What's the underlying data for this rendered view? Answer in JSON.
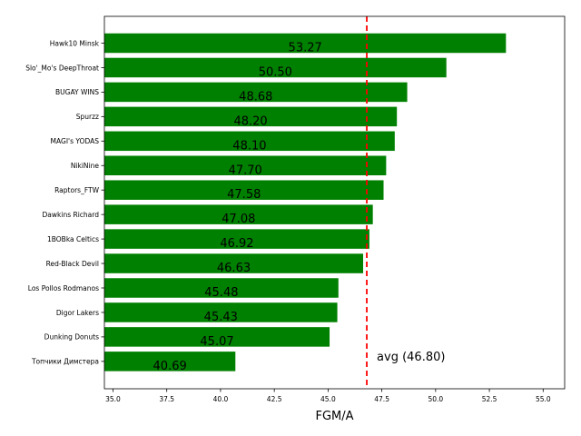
{
  "chart_data": {
    "type": "bar",
    "orientation": "horizontal",
    "categories": [
      "Hawk10 Minsk",
      "Slo'_Mo's DeepThroat",
      "BUGAY WINS",
      "Spurzz",
      "MAGI's YODAS",
      "NikiNine",
      "Raptors_FTW",
      "Dawkins Richard",
      "1BOBka Celtics",
      "Red-Black Devil",
      "Los Pollos Rodmanos",
      "Digor Lakers",
      "Dunking Donuts",
      "Топчики Димстера"
    ],
    "values": [
      53.27,
      50.5,
      48.68,
      48.2,
      48.1,
      47.7,
      47.58,
      47.08,
      46.92,
      46.63,
      45.48,
      45.43,
      45.07,
      40.69
    ],
    "value_labels": [
      "53.27",
      "50.50",
      "48.68",
      "48.20",
      "48.10",
      "47.70",
      "47.58",
      "47.08",
      "46.92",
      "46.63",
      "45.48",
      "45.43",
      "45.07",
      "40.69"
    ],
    "xlabel": "FGM/A",
    "ylabel": "",
    "title": "",
    "xlim": [
      34.6,
      56.0
    ],
    "xticks": [
      "35.0",
      "37.5",
      "40.0",
      "42.5",
      "45.0",
      "47.5",
      "50.0",
      "52.5",
      "55.0"
    ],
    "xtick_values": [
      35.0,
      37.5,
      40.0,
      42.5,
      45.0,
      47.5,
      50.0,
      52.5,
      55.0
    ],
    "average": 46.8,
    "average_label": "avg (46.80)",
    "bar_color": "#008000",
    "avg_line_color": "#ff0000",
    "grid": false
  }
}
